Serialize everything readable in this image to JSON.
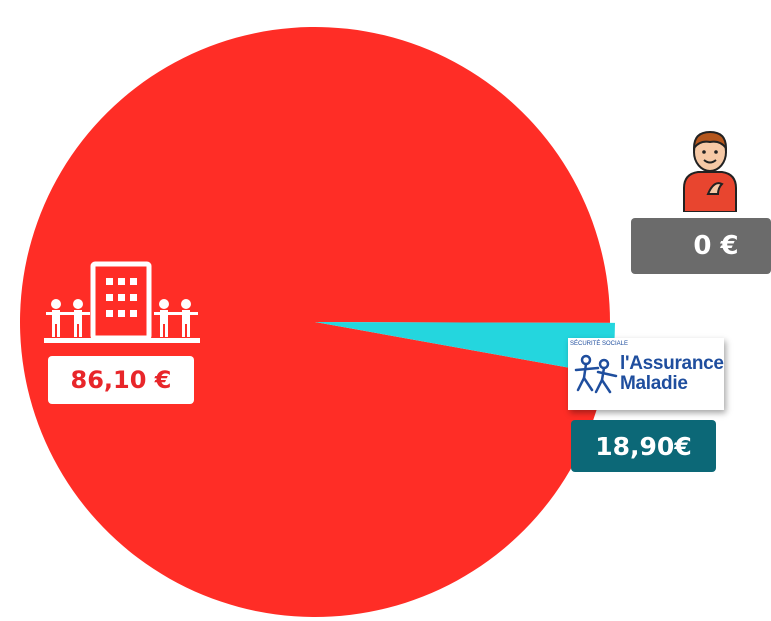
{
  "chart_data": {
    "type": "pie",
    "title": "",
    "slices": [
      {
        "label": "86,10 €",
        "value": 86.1,
        "color": "#ff2d26",
        "icon": "hospital-building-icon"
      },
      {
        "label": "18,90€",
        "value": 18.9,
        "color": "#24d6de",
        "icon": "assurance-maladie-logo"
      },
      {
        "label": "0 €",
        "value": 0,
        "color": "#6b6b6b",
        "icon": "patient-icon"
      }
    ]
  },
  "logo": {
    "name_line1": "l'Assurance",
    "name_line2": "Maladie",
    "tagline": "SÉCURITÉ SOCIALE"
  }
}
